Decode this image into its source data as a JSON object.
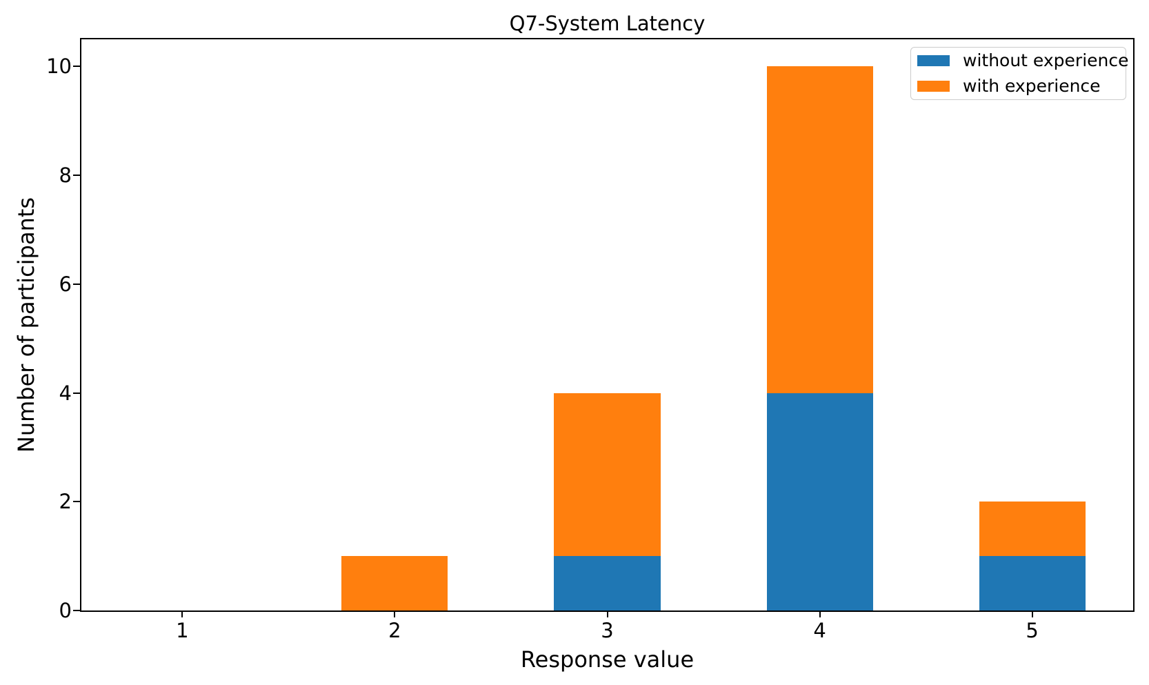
{
  "chart_data": {
    "type": "bar",
    "stacked": true,
    "title": "Q7-System Latency",
    "xlabel": "Response value",
    "ylabel": "Number of participants",
    "categories": [
      "1",
      "2",
      "3",
      "4",
      "5"
    ],
    "x_positions": [
      1,
      2,
      3,
      4,
      5
    ],
    "series": [
      {
        "name": "without experience",
        "color": "#1f77b4",
        "values": [
          0,
          0,
          1,
          4,
          1
        ]
      },
      {
        "name": "with experience",
        "color": "#ff7f0e",
        "values": [
          0,
          1,
          3,
          6,
          1
        ]
      }
    ],
    "totals": [
      0,
      1,
      4,
      10,
      2
    ],
    "yticks": [
      0,
      2,
      4,
      6,
      8,
      10
    ],
    "ylim": [
      0,
      10.5
    ],
    "xlim": [
      0.525,
      5.475
    ],
    "bar_width": 0.5,
    "grid": false,
    "legend_position": "upper right"
  }
}
